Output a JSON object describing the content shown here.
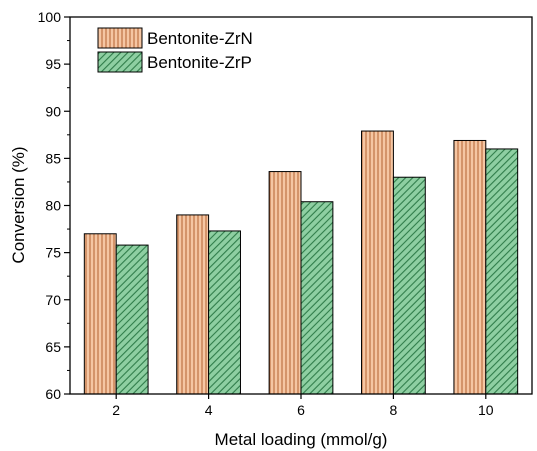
{
  "chart_data": {
    "type": "bar",
    "categories": [
      "2",
      "4",
      "6",
      "8",
      "10"
    ],
    "series": [
      {
        "name": "Bentonite-ZrN",
        "values": [
          77.0,
          79.0,
          83.6,
          87.9,
          86.9
        ],
        "fill": "#f5c6a3",
        "hatch": "#b86a3c",
        "hatch_style": "vertical"
      },
      {
        "name": "Bentonite-ZrP",
        "values": [
          75.8,
          77.3,
          80.4,
          83.0,
          86.0
        ],
        "fill": "#8ecfa2",
        "hatch": "#2f7c4a",
        "hatch_style": "diagonal"
      }
    ],
    "title": "",
    "xlabel": "Metal loading (mmol/g)",
    "ylabel": "Conversion (%)",
    "ylim": [
      60,
      100
    ],
    "yticks": [
      "60",
      "65",
      "70",
      "75",
      "80",
      "85",
      "90",
      "95",
      "100"
    ],
    "grid": false,
    "legend_position": "top-left"
  }
}
